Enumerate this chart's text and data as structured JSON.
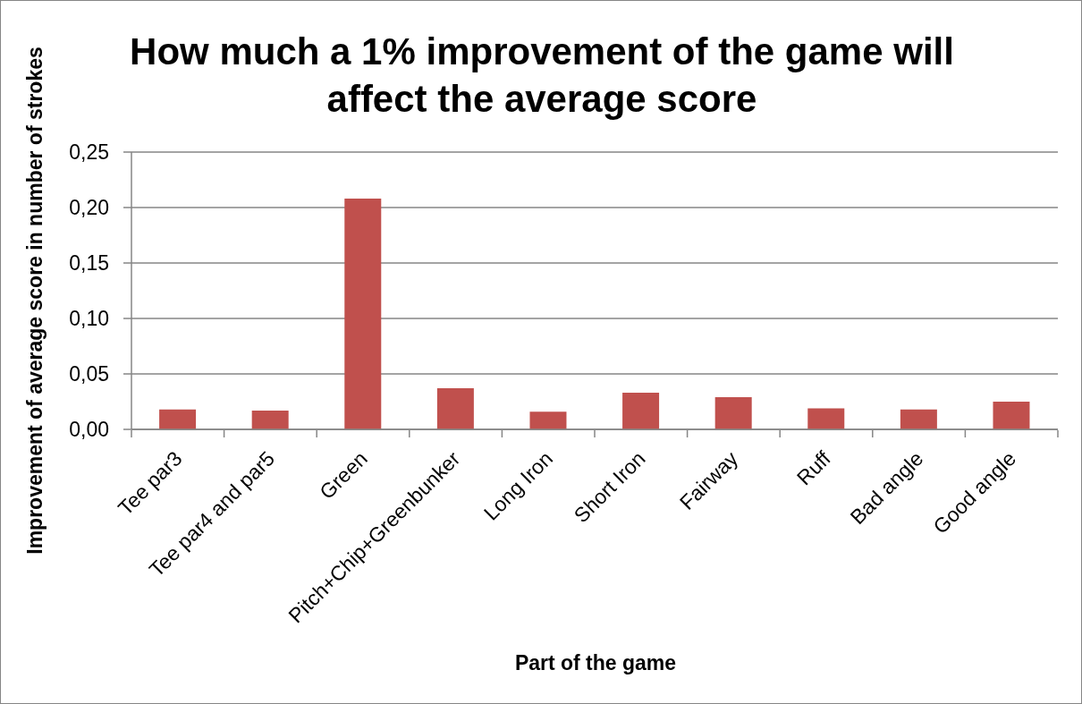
{
  "chart_data": {
    "type": "bar",
    "title": "How much a 1% improvement of the game will affect the average score",
    "xlabel": "Part of the game",
    "ylabel": "Improvement of average score in number of strokes",
    "categories": [
      "Tee par3",
      "Tee par4 and par5",
      "Green",
      "Pitch+Chip+Greenbunker",
      "Long Iron",
      "Short Iron",
      "Fairway",
      "Ruff",
      "Bad angle",
      "Good angle"
    ],
    "values": [
      0.018,
      0.017,
      0.208,
      0.037,
      0.016,
      0.033,
      0.029,
      0.019,
      0.018,
      0.025
    ],
    "color": "#c0504d",
    "ylim": [
      0,
      0.25
    ],
    "yticks": [
      {
        "value": 0,
        "label": "0,00"
      },
      {
        "value": 0.05,
        "label": "0,05"
      },
      {
        "value": 0.1,
        "label": "0,10"
      },
      {
        "value": 0.15,
        "label": "0,15"
      },
      {
        "value": 0.2,
        "label": "0,20"
      },
      {
        "value": 0.25,
        "label": "0,25"
      }
    ],
    "grid": "y"
  }
}
